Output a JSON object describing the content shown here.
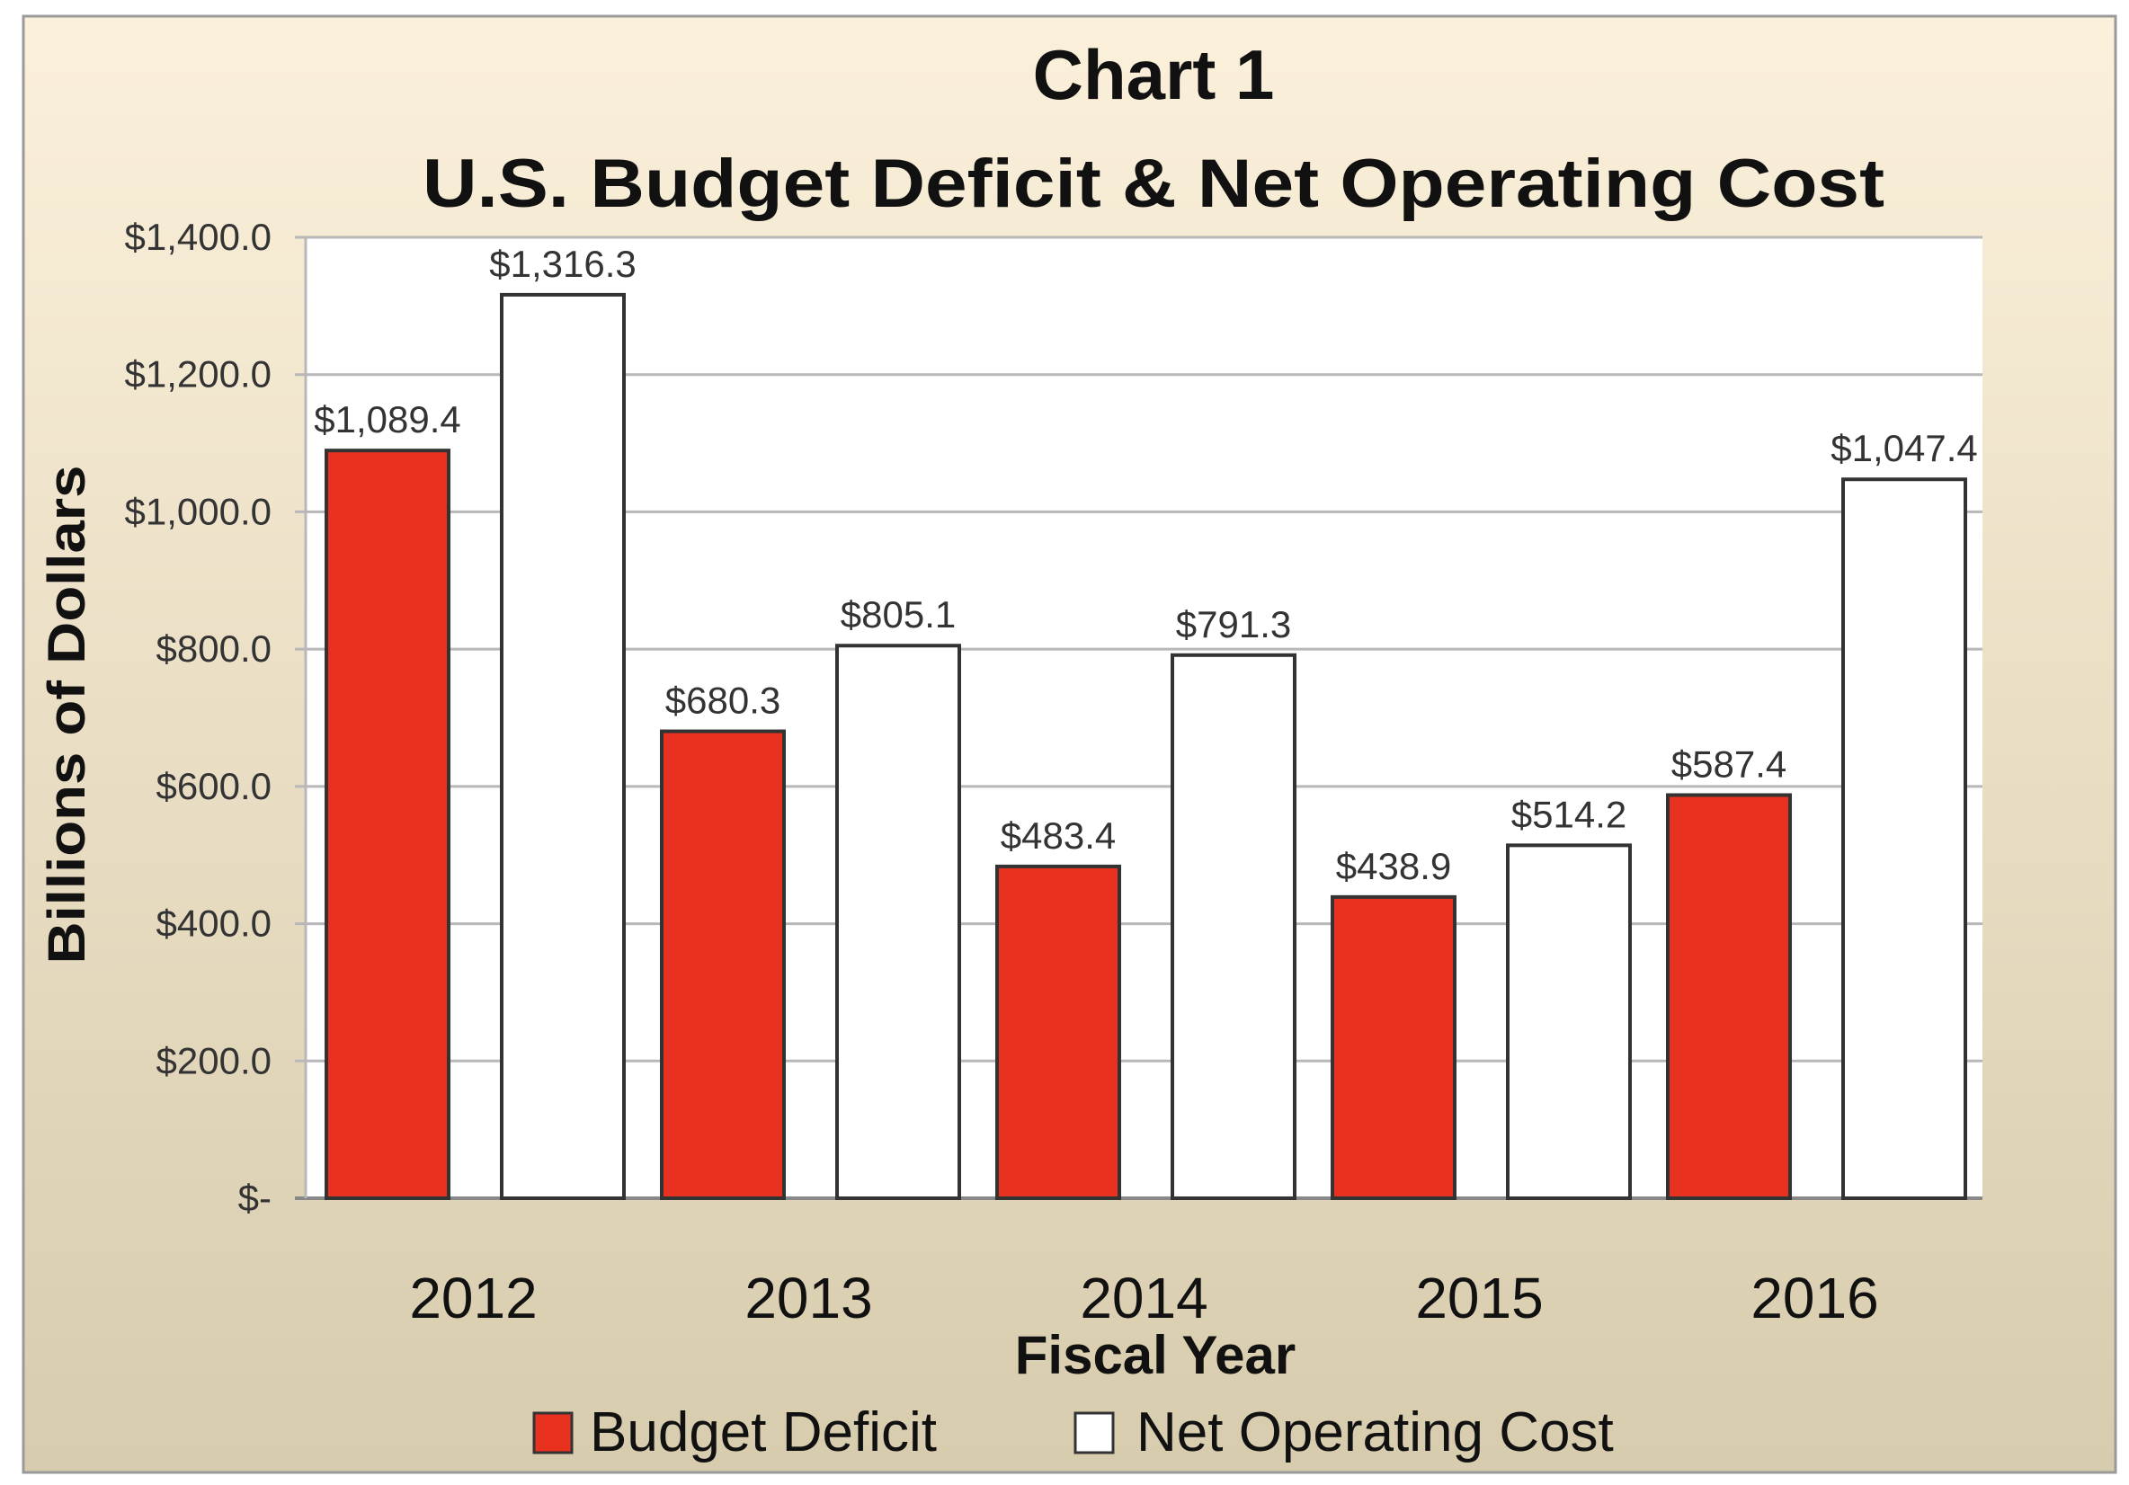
{
  "chart_data": {
    "type": "bar",
    "title": "Chart 1",
    "subtitle": "U.S. Budget Deficit & Net Operating Cost",
    "xlabel": "Fiscal Year",
    "ylabel": "Billions of Dollars",
    "categories": [
      "2012",
      "2013",
      "2014",
      "2015",
      "2016"
    ],
    "series": [
      {
        "name": "Budget Deficit",
        "color": "#e8321f",
        "values": [
          1089.4,
          680.3,
          483.4,
          438.9,
          587.4
        ],
        "labels": [
          "$1,089.4",
          "$680.3",
          "$483.4",
          "$438.9",
          "$587.4"
        ]
      },
      {
        "name": "Net Operating Cost",
        "color": "#ffffff",
        "values": [
          1316.3,
          805.1,
          791.3,
          514.2,
          1047.4
        ],
        "labels": [
          "$1,316.3",
          "$805.1",
          "$791.3",
          "$514.2",
          "$1,047.4"
        ]
      }
    ],
    "ylim": [
      0,
      1400
    ],
    "yticks": [
      0,
      200,
      400,
      600,
      800,
      1000,
      1200,
      1400
    ],
    "ytick_labels": [
      "$-",
      "$200.0",
      "$400.0",
      "$600.0",
      "$800.0",
      "$1,000.0",
      "$1,200.0",
      "$1,400.0"
    ],
    "grid": true,
    "legend_position": "bottom",
    "background_colors": [
      "#fbf0da",
      "#d8ccae"
    ]
  }
}
